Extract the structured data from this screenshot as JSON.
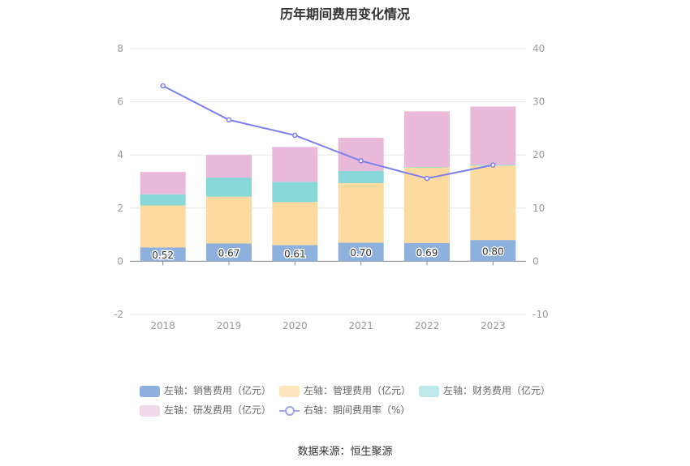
{
  "chart_data": {
    "type": "bar",
    "title": "历年期间费用变化情况",
    "categories": [
      "2018",
      "2019",
      "2020",
      "2021",
      "2022",
      "2023"
    ],
    "left_axis": {
      "ylim": [
        -2,
        8
      ],
      "ticks": [
        "-2",
        "0",
        "2",
        "4",
        "6",
        "8"
      ]
    },
    "right_axis": {
      "ylim": [
        -10,
        40
      ],
      "ticks": [
        "-10",
        "0",
        "10",
        "20",
        "30",
        "40"
      ]
    },
    "stacked": true,
    "series": [
      {
        "name": "左轴：销售费用（亿元）",
        "axis": "left",
        "color": "#8eb0dd",
        "values": [
          0.52,
          0.67,
          0.61,
          0.7,
          0.69,
          0.8
        ],
        "labels": [
          "0.52",
          "0.67",
          "0.61",
          "0.70",
          "0.69",
          "0.80"
        ]
      },
      {
        "name": "左轴：管理费用（亿元）",
        "axis": "left",
        "color": "#fddba0",
        "values": [
          1.58,
          1.76,
          1.62,
          2.24,
          2.84,
          2.8
        ]
      },
      {
        "name": "左轴：财务费用（亿元）",
        "axis": "left",
        "color": "#88d7d9",
        "values": [
          0.42,
          0.72,
          0.76,
          0.46,
          0.02,
          0.03
        ]
      },
      {
        "name": "左轴：研发费用（亿元）",
        "axis": "left",
        "color": "#e8b9d9",
        "values": [
          0.84,
          0.85,
          1.31,
          1.25,
          2.09,
          2.19
        ]
      },
      {
        "name": "右轴：期间费用率（%）",
        "axis": "right",
        "type": "line",
        "color": "#7b7ff0",
        "values": [
          33.0,
          26.6,
          23.7,
          18.9,
          15.6,
          18.1
        ]
      }
    ],
    "grid": true,
    "legend_position": "bottom"
  },
  "legend_colors": {
    "sales": "#8eb0dd",
    "admin": "#fde5bf",
    "finance": "#bde9ea",
    "rd": "#f2d9ea",
    "rate": "#9fa3f3"
  },
  "source": "数据来源：恒生聚源"
}
